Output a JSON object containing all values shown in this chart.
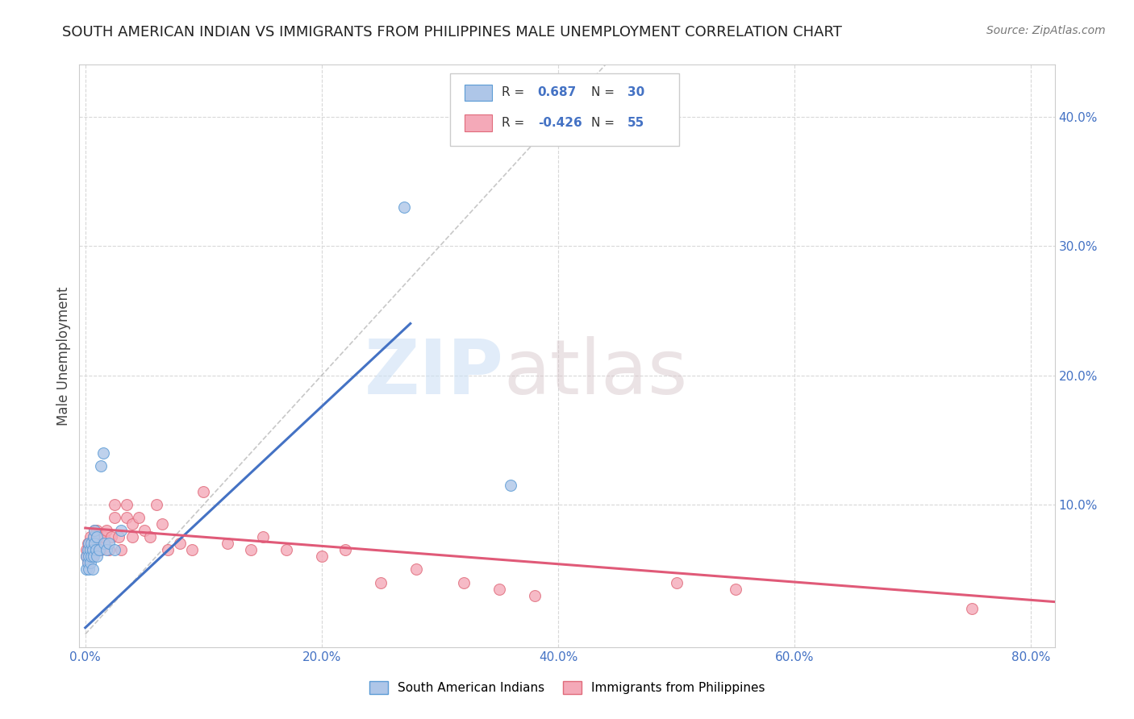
{
  "title": "SOUTH AMERICAN INDIAN VS IMMIGRANTS FROM PHILIPPINES MALE UNEMPLOYMENT CORRELATION CHART",
  "source": "Source: ZipAtlas.com",
  "ylabel": "Male Unemployment",
  "xlabel": "",
  "x_tick_labels": [
    "0.0%",
    "20.0%",
    "40.0%",
    "60.0%",
    "80.0%"
  ],
  "x_tick_values": [
    0.0,
    0.2,
    0.4,
    0.6,
    0.8
  ],
  "y_tick_labels": [
    "10.0%",
    "20.0%",
    "30.0%",
    "40.0%"
  ],
  "y_tick_values": [
    0.1,
    0.2,
    0.3,
    0.4
  ],
  "xlim": [
    -0.005,
    0.82
  ],
  "ylim": [
    -0.01,
    0.44
  ],
  "blue_scatter_x": [
    0.001,
    0.001,
    0.002,
    0.002,
    0.003,
    0.003,
    0.003,
    0.004,
    0.004,
    0.005,
    0.005,
    0.006,
    0.006,
    0.007,
    0.007,
    0.008,
    0.008,
    0.009,
    0.01,
    0.01,
    0.012,
    0.013,
    0.015,
    0.016,
    0.018,
    0.02,
    0.025,
    0.03,
    0.27,
    0.36
  ],
  "blue_scatter_y": [
    0.05,
    0.06,
    0.055,
    0.065,
    0.05,
    0.06,
    0.07,
    0.055,
    0.065,
    0.06,
    0.07,
    0.05,
    0.065,
    0.06,
    0.075,
    0.07,
    0.08,
    0.065,
    0.06,
    0.075,
    0.065,
    0.13,
    0.14,
    0.07,
    0.065,
    0.07,
    0.065,
    0.08,
    0.33,
    0.115
  ],
  "pink_scatter_x": [
    0.001,
    0.001,
    0.002,
    0.002,
    0.003,
    0.004,
    0.004,
    0.005,
    0.005,
    0.006,
    0.007,
    0.007,
    0.008,
    0.008,
    0.009,
    0.01,
    0.01,
    0.012,
    0.013,
    0.015,
    0.016,
    0.018,
    0.02,
    0.022,
    0.025,
    0.025,
    0.028,
    0.03,
    0.035,
    0.035,
    0.04,
    0.04,
    0.045,
    0.05,
    0.055,
    0.06,
    0.065,
    0.07,
    0.08,
    0.09,
    0.1,
    0.12,
    0.14,
    0.15,
    0.17,
    0.2,
    0.22,
    0.25,
    0.28,
    0.32,
    0.35,
    0.38,
    0.5,
    0.55,
    0.75
  ],
  "pink_scatter_y": [
    0.06,
    0.065,
    0.055,
    0.07,
    0.065,
    0.06,
    0.075,
    0.065,
    0.07,
    0.06,
    0.065,
    0.075,
    0.07,
    0.08,
    0.065,
    0.07,
    0.08,
    0.075,
    0.065,
    0.07,
    0.075,
    0.08,
    0.065,
    0.075,
    0.09,
    0.1,
    0.075,
    0.065,
    0.09,
    0.1,
    0.075,
    0.085,
    0.09,
    0.08,
    0.075,
    0.1,
    0.085,
    0.065,
    0.07,
    0.065,
    0.11,
    0.07,
    0.065,
    0.075,
    0.065,
    0.06,
    0.065,
    0.04,
    0.05,
    0.04,
    0.035,
    0.03,
    0.04,
    0.035,
    0.02
  ],
  "blue_line_x": [
    0.0,
    0.275
  ],
  "blue_line_y": [
    0.005,
    0.24
  ],
  "pink_line_x": [
    0.0,
    0.82
  ],
  "pink_line_y": [
    0.082,
    0.025
  ],
  "diag_line_x": [
    0.0,
    0.44
  ],
  "diag_line_y": [
    0.0,
    0.44
  ],
  "blue_color": "#aec6e8",
  "blue_edge": "#5b9bd5",
  "pink_color": "#f4a9b8",
  "pink_edge": "#e06a7a",
  "blue_line_color": "#4472c4",
  "pink_line_color": "#e05a78",
  "diag_color": "#b0b0b0",
  "background_color": "#ffffff",
  "grid_color": "#d8d8d8",
  "title_fontsize": 13,
  "axis_label_fontsize": 12,
  "tick_fontsize": 11,
  "legend_r1": "0.687",
  "legend_n1": "30",
  "legend_r2": "-0.426",
  "legend_n2": "55",
  "legend_label1": "South American Indians",
  "legend_label2": "Immigrants from Philippines"
}
